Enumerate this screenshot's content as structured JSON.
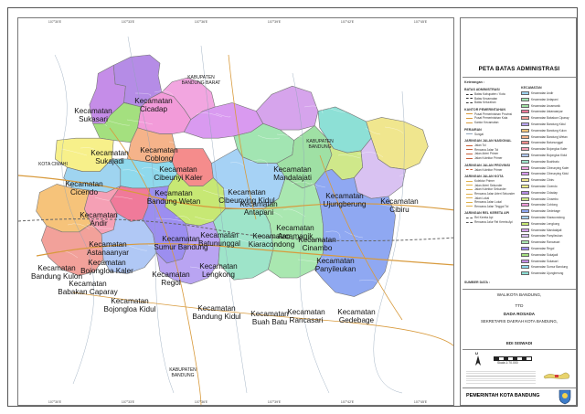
{
  "map": {
    "kecamatan": [
      {
        "line1": "Kecamatan",
        "line2": "Sukasari",
        "color": "#c58de8"
      },
      {
        "line1": "Kecamatan",
        "line2": "Cicadap",
        "color": "#b58ce6"
      },
      {
        "line1": "Kecamatan",
        "line2": "Sukajadi",
        "color": "#a4e07f"
      },
      {
        "line1": "Kecamatan",
        "line2": "Coblong",
        "color": "#f29bd9"
      },
      {
        "line1": "Kecamatan",
        "line2": "Cicendo",
        "color": "#f7f08a"
      },
      {
        "line1": "Kecamatan",
        "line2": "Cibeunyi Kaler",
        "color": "#f2a6e0"
      },
      {
        "line1": "Kecamatan",
        "line2": "Bandung Wetan",
        "color": "#f5b38a"
      },
      {
        "line1": "Kecamatan",
        "line2": "Cibeunying Kidul",
        "color": "#d99af0"
      },
      {
        "line1": "Kecamatan",
        "line2": "Mandalajati",
        "color": "#d6a4ec"
      },
      {
        "line1": "Kecamatan",
        "line2": "Andir",
        "color": "#9fd4f0"
      },
      {
        "line1": "Kecamatan",
        "line2": "Sumur Bandung",
        "color": "#8fd9ec"
      },
      {
        "line1": "Kecamatan",
        "line2": "Batununggal",
        "color": "#f58c8c"
      },
      {
        "line1": "Kecamatan",
        "line2": "Antapani",
        "color": "#a2e5b2"
      },
      {
        "line1": "Kecamatan",
        "line2": "Ujungberung",
        "color": "#8de0d6"
      },
      {
        "line1": "Kecamatan",
        "line2": "Cibiru",
        "color": "#f0e68e"
      },
      {
        "line1": "Kecamatan",
        "line2": "Astanaanyar",
        "color": "#f07a9a"
      },
      {
        "line1": "Kecamatan",
        "line2": "Bojongloa Kaler",
        "color": "#f5a0b5"
      },
      {
        "line1": "Kecamatan",
        "line2": "Bandung Kulon",
        "color": "#f6c37a"
      },
      {
        "line1": "Kecamatan",
        "line2": "Lengkong",
        "color": "#c7e874"
      },
      {
        "line1": "Kecamatan",
        "line2": "Kiaracondong",
        "color": "#a6d2f5"
      },
      {
        "line1": "Kecamatan",
        "line2": "Arcamanik",
        "color": "#9fe0a4"
      },
      {
        "line1": "Kecamatan",
        "line2": "Cinambo",
        "color": "#cfe88a"
      },
      {
        "line1": "Kecamatan",
        "line2": "Panyileukan",
        "color": "#d9c2f2"
      },
      {
        "line1": "Kecamatan",
        "line2": "Babakan Caparay",
        "color": "#f2a19a"
      },
      {
        "line1": "Kecamatan",
        "line2": "Bojongloa Kidul",
        "color": "#b0c8f5"
      },
      {
        "line1": "Kecamatan",
        "line2": "Regol",
        "color": "#9c8ef0"
      },
      {
        "line1": "Kecamatan",
        "line2": "Bandung Kidul",
        "color": "#b9a4f2"
      },
      {
        "line1": "Kecamatan",
        "line2": "Buah Batu",
        "color": "#9ee4c9"
      },
      {
        "line1": "Kecamatan",
        "line2": "Rancasari",
        "color": "#a9e7b0"
      },
      {
        "line1": "Kecamatan",
        "line2": "Gedebage",
        "color": "#8fa8f2"
      }
    ],
    "external": [
      {
        "line1": "KABUPATEN",
        "line2": "BANDUNG BARAT"
      },
      {
        "line1": "KABUPATEN",
        "line2": "BANDUNG"
      },
      {
        "line1": "KOTA CIMAHI",
        "line2": ""
      },
      {
        "line1": "KABUPATEN",
        "line2": "BANDUNG"
      }
    ],
    "coords": [
      "107°30'E",
      "107°33'E",
      "107°36'E",
      "107°39'E",
      "107°42'E",
      "107°45'E"
    ],
    "colors": {
      "road": "#d89a3c",
      "railway": "#666666",
      "boundary": "#777777",
      "river": "#8fa3b8"
    }
  },
  "legend": {
    "title": "PETA BATAS ADMINISTRASI",
    "keterangan": "Keterangan :",
    "sections": [
      {
        "head": "BATAS ADMINISTRASI",
        "rows": [
          "Batas Kabupaten / Kota",
          "Batas Kecamatan",
          "Batas Kelurahan"
        ]
      },
      {
        "head": "KANTOR PEMERINTAHAN",
        "rows": [
          "Pusat Pemerintahan Provinsi",
          "Pusat Pemerintahan Kota",
          "Kantor Kecamatan"
        ]
      },
      {
        "head": "PERAIRAN",
        "rows": [
          "Sungai"
        ]
      },
      {
        "head": "JARINGAN JALAN NASIONAL",
        "rows": [
          "Jalan Tol",
          "Rencana Jalan Tol",
          "Jalan Arteri Primer",
          "Jalan Kolektor Primer"
        ]
      },
      {
        "head": "JARINGAN JALAN PROVINSI",
        "rows": [
          "Jalan Kolektor Primer"
        ]
      },
      {
        "head": "JARINGAN JALAN KOTA",
        "rows": [
          "Kolektor Primer",
          "Jalan Arteri Sekunder",
          "Jalan Kolektor Sekunder",
          "Rencana Jalan Arteri Sekunder",
          "Jalan Lokal",
          "Rencana Jalan Lokal",
          "Rencana Jalan Tinggal Tol"
        ]
      },
      {
        "head": "JARINGAN REL KERETA API",
        "rows": [
          "Rel Kereta Api",
          "Rencana Jalur Rel Kereta Api"
        ]
      }
    ],
    "kecamatan_head": "KECAMATAN",
    "kecamatan_items": [
      "Kecamatan Andir",
      "Kecamatan Antapani",
      "Kecamatan Arcamanik",
      "Kecamatan Astanaanyar",
      "Kecamatan Babakan Ciparay",
      "Kecamatan Bandung Kidul",
      "Kecamatan Bandung Kulon",
      "Kecamatan Bandung Wetan",
      "Kecamatan Batununggal",
      "Kecamatan Bojongloa Kaler",
      "Kecamatan Bojongloa Kidul",
      "Kecamatan Buahbatu",
      "Kecamatan Cibeunying Kaler",
      "Kecamatan Cibeunying Kidul",
      "Kecamatan Cibiru",
      "Kecamatan Cicendo",
      "Kecamatan Cidadap",
      "Kecamatan Cinambo",
      "Kecamatan Coblong",
      "Kecamatan Gedebage",
      "Kecamatan Kiaracondong",
      "Kecamatan Lengkong",
      "Kecamatan Mandalajati",
      "Kecamatan Panyileukan",
      "Kecamatan Rancasari",
      "Kecamatan Regol",
      "Kecamatan Sukajadi",
      "Kecamatan Sukasari",
      "Kecamatan Sumur Bandung",
      "Kecamatan Ujungberung"
    ],
    "source_label": "SUMBER DATA :",
    "walikota": "WALIKOTA BANDUNG,",
    "ttd": "TTD",
    "name1": "DADA ROSADA",
    "sekretaris": "SEKRETARIS DAERAH KOTA BANDUNG,",
    "name2": "EDI SISWADI",
    "north": "U",
    "scale": "Skala 1:70.000",
    "footer": "PEMERINTAH KOTA BANDUNG"
  }
}
